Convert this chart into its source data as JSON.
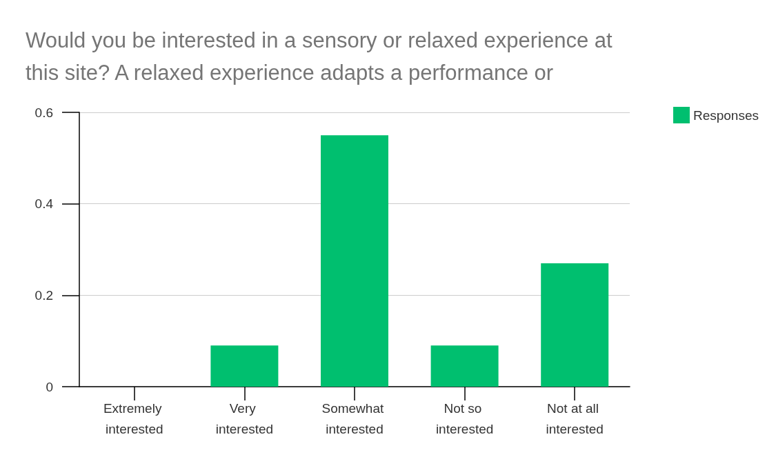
{
  "chart_data": {
    "type": "bar",
    "title": "Would you be interested in a sensory or relaxed experience at this site? A relaxed experience adapts a performance or",
    "categories": [
      "Extremely interested",
      "Very interested",
      "Somewhat interested",
      "Not so interested",
      "Not at all interested"
    ],
    "series": [
      {
        "name": "Responses",
        "color": "#00bf6f",
        "values": [
          0,
          0.09,
          0.55,
          0.09,
          0.27
        ]
      }
    ],
    "ylim": [
      0,
      0.6
    ],
    "yticks": [
      0,
      0.2,
      0.4,
      0.6
    ],
    "grid": "y",
    "legend": "top right"
  }
}
